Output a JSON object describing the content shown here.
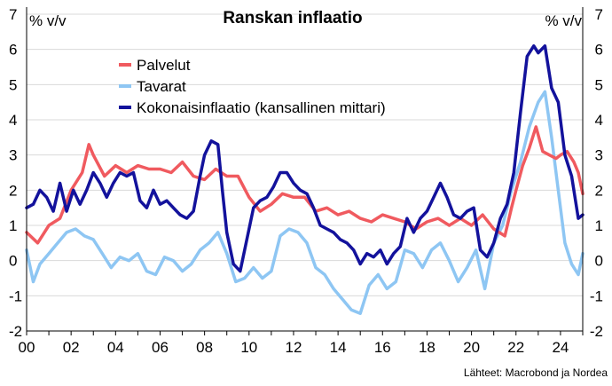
{
  "chart_data": {
    "type": "line",
    "title": "Ranskan inflaatio",
    "y_unit_left": "% v/v",
    "y_unit_right": "% v/v",
    "source": "Lähteet: Macrobond ja Nordea",
    "xlim": [
      2000.0,
      2025.0
    ],
    "ylim": [
      -2,
      7
    ],
    "y_ticks": [
      -2,
      -1,
      0,
      1,
      2,
      3,
      4,
      5,
      6,
      7
    ],
    "x_ticks": [
      {
        "value": 2000,
        "label": "00"
      },
      {
        "value": 2002,
        "label": "02"
      },
      {
        "value": 2004,
        "label": "04"
      },
      {
        "value": 2006,
        "label": "06"
      },
      {
        "value": 2008,
        "label": "08"
      },
      {
        "value": 2010,
        "label": "10"
      },
      {
        "value": 2012,
        "label": "12"
      },
      {
        "value": 2014,
        "label": "14"
      },
      {
        "value": 2016,
        "label": "16"
      },
      {
        "value": 2018,
        "label": "18"
      },
      {
        "value": 2020,
        "label": "20"
      },
      {
        "value": 2022,
        "label": "22"
      },
      {
        "value": 2024,
        "label": "24"
      }
    ],
    "grid": true,
    "legend_position": "top-left",
    "series": [
      {
        "name": "Palvelut",
        "color": "#f05a5f",
        "x": [
          2000.0,
          2000.5,
          2001.0,
          2001.5,
          2002.0,
          2002.5,
          2002.8,
          2003.0,
          2003.5,
          2004.0,
          2004.5,
          2005.0,
          2005.5,
          2006.0,
          2006.5,
          2007.0,
          2007.5,
          2008.0,
          2008.5,
          2009.0,
          2009.5,
          2010.0,
          2010.5,
          2011.0,
          2011.5,
          2012.0,
          2012.5,
          2013.0,
          2013.5,
          2014.0,
          2014.5,
          2015.0,
          2015.5,
          2016.0,
          2016.5,
          2017.0,
          2017.5,
          2018.0,
          2018.5,
          2019.0,
          2019.5,
          2020.0,
          2020.5,
          2021.0,
          2021.5,
          2021.8,
          2022.0,
          2022.3,
          2022.6,
          2022.9,
          2023.2,
          2023.5,
          2023.8,
          2024.0,
          2024.3,
          2024.6,
          2024.8,
          2025.0
        ],
        "y": [
          0.8,
          0.5,
          1.0,
          1.2,
          2.0,
          2.5,
          3.3,
          3.0,
          2.4,
          2.7,
          2.5,
          2.7,
          2.6,
          2.6,
          2.5,
          2.8,
          2.4,
          2.3,
          2.6,
          2.4,
          2.4,
          1.8,
          1.4,
          1.6,
          1.9,
          1.8,
          1.8,
          1.4,
          1.5,
          1.3,
          1.4,
          1.2,
          1.1,
          1.3,
          1.2,
          1.1,
          0.9,
          1.1,
          1.2,
          1.0,
          1.2,
          1.0,
          1.3,
          0.9,
          0.7,
          1.5,
          2.0,
          2.7,
          3.2,
          3.8,
          3.1,
          3.0,
          2.9,
          3.0,
          3.1,
          2.8,
          2.5,
          1.9
        ]
      },
      {
        "name": "Tavarat",
        "color": "#8ec6f3",
        "x": [
          2000.0,
          2000.3,
          2000.6,
          2001.0,
          2001.4,
          2001.8,
          2002.2,
          2002.6,
          2003.0,
          2003.4,
          2003.8,
          2004.2,
          2004.6,
          2005.0,
          2005.4,
          2005.8,
          2006.2,
          2006.6,
          2007.0,
          2007.4,
          2007.8,
          2008.2,
          2008.6,
          2009.0,
          2009.4,
          2009.8,
          2010.2,
          2010.6,
          2011.0,
          2011.4,
          2011.8,
          2012.2,
          2012.6,
          2013.0,
          2013.4,
          2013.8,
          2014.2,
          2014.6,
          2015.0,
          2015.4,
          2015.8,
          2016.2,
          2016.6,
          2017.0,
          2017.4,
          2017.8,
          2018.2,
          2018.6,
          2019.0,
          2019.4,
          2019.8,
          2020.2,
          2020.6,
          2021.0,
          2021.4,
          2021.8,
          2022.2,
          2022.6,
          2023.0,
          2023.3,
          2023.6,
          2023.9,
          2024.2,
          2024.5,
          2024.8,
          2025.0
        ],
        "y": [
          0.3,
          -0.6,
          -0.1,
          0.2,
          0.5,
          0.8,
          0.9,
          0.7,
          0.6,
          0.2,
          -0.2,
          0.1,
          0.0,
          0.2,
          -0.3,
          -0.4,
          0.1,
          0.0,
          -0.3,
          -0.1,
          0.3,
          0.5,
          0.8,
          0.2,
          -0.6,
          -0.5,
          -0.2,
          -0.5,
          -0.3,
          0.7,
          0.9,
          0.8,
          0.5,
          -0.2,
          -0.4,
          -0.8,
          -1.1,
          -1.4,
          -1.5,
          -0.7,
          -0.4,
          -0.8,
          -0.6,
          0.3,
          0.2,
          -0.2,
          0.3,
          0.5,
          0.0,
          -0.6,
          -0.2,
          0.3,
          -0.8,
          0.5,
          1.0,
          2.0,
          2.8,
          3.8,
          4.5,
          4.8,
          3.5,
          2.0,
          0.5,
          -0.1,
          -0.4,
          0.2
        ]
      },
      {
        "name": "Kokonaisinflaatio (kansallinen mittari)",
        "color": "#13129c",
        "x": [
          2000.0,
          2000.3,
          2000.6,
          2000.9,
          2001.2,
          2001.5,
          2001.8,
          2002.1,
          2002.4,
          2002.7,
          2003.0,
          2003.3,
          2003.6,
          2003.9,
          2004.2,
          2004.5,
          2004.8,
          2005.1,
          2005.4,
          2005.7,
          2006.0,
          2006.3,
          2006.6,
          2006.9,
          2007.2,
          2007.5,
          2007.8,
          2008.0,
          2008.3,
          2008.6,
          2008.8,
          2009.0,
          2009.3,
          2009.6,
          2009.9,
          2010.2,
          2010.5,
          2010.8,
          2011.1,
          2011.4,
          2011.7,
          2012.0,
          2012.3,
          2012.6,
          2012.9,
          2013.2,
          2013.5,
          2013.8,
          2014.1,
          2014.4,
          2014.7,
          2015.0,
          2015.3,
          2015.6,
          2015.9,
          2016.2,
          2016.5,
          2016.8,
          2017.1,
          2017.4,
          2017.7,
          2018.0,
          2018.3,
          2018.6,
          2018.9,
          2019.2,
          2019.5,
          2019.8,
          2020.1,
          2020.4,
          2020.7,
          2021.0,
          2021.3,
          2021.6,
          2021.9,
          2022.2,
          2022.5,
          2022.8,
          2023.0,
          2023.3,
          2023.6,
          2023.9,
          2024.2,
          2024.5,
          2024.8,
          2025.0
        ],
        "y": [
          1.5,
          1.6,
          2.0,
          1.8,
          1.4,
          2.2,
          1.4,
          2.0,
          1.6,
          2.0,
          2.5,
          2.2,
          1.8,
          2.2,
          2.5,
          2.4,
          2.5,
          1.7,
          1.5,
          2.0,
          1.6,
          1.7,
          1.5,
          1.3,
          1.2,
          1.4,
          2.4,
          3.0,
          3.4,
          3.3,
          2.0,
          0.8,
          -0.1,
          -0.3,
          0.6,
          1.5,
          1.7,
          1.8,
          2.1,
          2.5,
          2.5,
          2.2,
          2.0,
          1.9,
          1.5,
          1.0,
          0.9,
          0.8,
          0.6,
          0.5,
          0.3,
          -0.1,
          0.2,
          0.1,
          0.3,
          -0.1,
          0.2,
          0.4,
          1.2,
          0.8,
          1.2,
          1.4,
          1.8,
          2.2,
          1.8,
          1.3,
          1.2,
          1.4,
          1.5,
          0.3,
          0.1,
          0.5,
          1.2,
          1.6,
          2.5,
          4.2,
          5.8,
          6.1,
          5.9,
          6.1,
          4.9,
          4.5,
          3.0,
          2.4,
          1.2,
          1.3
        ]
      }
    ]
  }
}
